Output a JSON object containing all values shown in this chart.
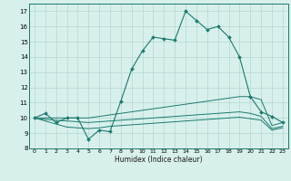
{
  "x": [
    0,
    1,
    2,
    3,
    4,
    5,
    6,
    7,
    8,
    9,
    10,
    11,
    12,
    13,
    14,
    15,
    16,
    17,
    18,
    19,
    20,
    21,
    22,
    23
  ],
  "humidex_main": [
    10.0,
    10.3,
    9.7,
    10.0,
    10.0,
    8.6,
    9.2,
    9.1,
    11.1,
    13.2,
    14.4,
    15.3,
    15.2,
    15.1,
    17.0,
    16.4,
    15.8,
    16.0,
    15.3,
    14.0,
    11.4,
    10.4,
    10.1,
    9.7
  ],
  "line_upper": [
    10.0,
    10.0,
    10.0,
    10.0,
    10.0,
    10.0,
    10.1,
    10.2,
    10.3,
    10.4,
    10.5,
    10.6,
    10.7,
    10.8,
    10.9,
    11.0,
    11.1,
    11.2,
    11.3,
    11.4,
    11.4,
    11.2,
    9.5,
    9.7
  ],
  "line_middle": [
    10.0,
    9.9,
    9.85,
    9.8,
    9.75,
    9.7,
    9.75,
    9.8,
    9.85,
    9.9,
    9.95,
    10.0,
    10.05,
    10.1,
    10.15,
    10.2,
    10.25,
    10.3,
    10.35,
    10.4,
    10.3,
    10.1,
    9.3,
    9.45
  ],
  "line_lower": [
    10.0,
    9.8,
    9.6,
    9.4,
    9.35,
    9.3,
    9.35,
    9.45,
    9.5,
    9.55,
    9.6,
    9.65,
    9.7,
    9.75,
    9.8,
    9.85,
    9.9,
    9.95,
    10.0,
    10.05,
    9.95,
    9.85,
    9.2,
    9.35
  ],
  "main_color": "#1a7a6e",
  "line_color": "#1a7a6e",
  "bg_color": "#d8f0ec",
  "grid_color": "#b0d8d0",
  "xlabel": "Humidex (Indice chaleur)",
  "ylim": [
    8,
    17.5
  ],
  "xlim": [
    -0.5,
    23.5
  ],
  "yticks": [
    8,
    9,
    10,
    11,
    12,
    13,
    14,
    15,
    16,
    17
  ],
  "xticks": [
    0,
    1,
    2,
    3,
    4,
    5,
    6,
    7,
    8,
    9,
    10,
    11,
    12,
    13,
    14,
    15,
    16,
    17,
    18,
    19,
    20,
    21,
    22,
    23
  ],
  "figsize": [
    3.2,
    2.0
  ],
  "dpi": 100
}
